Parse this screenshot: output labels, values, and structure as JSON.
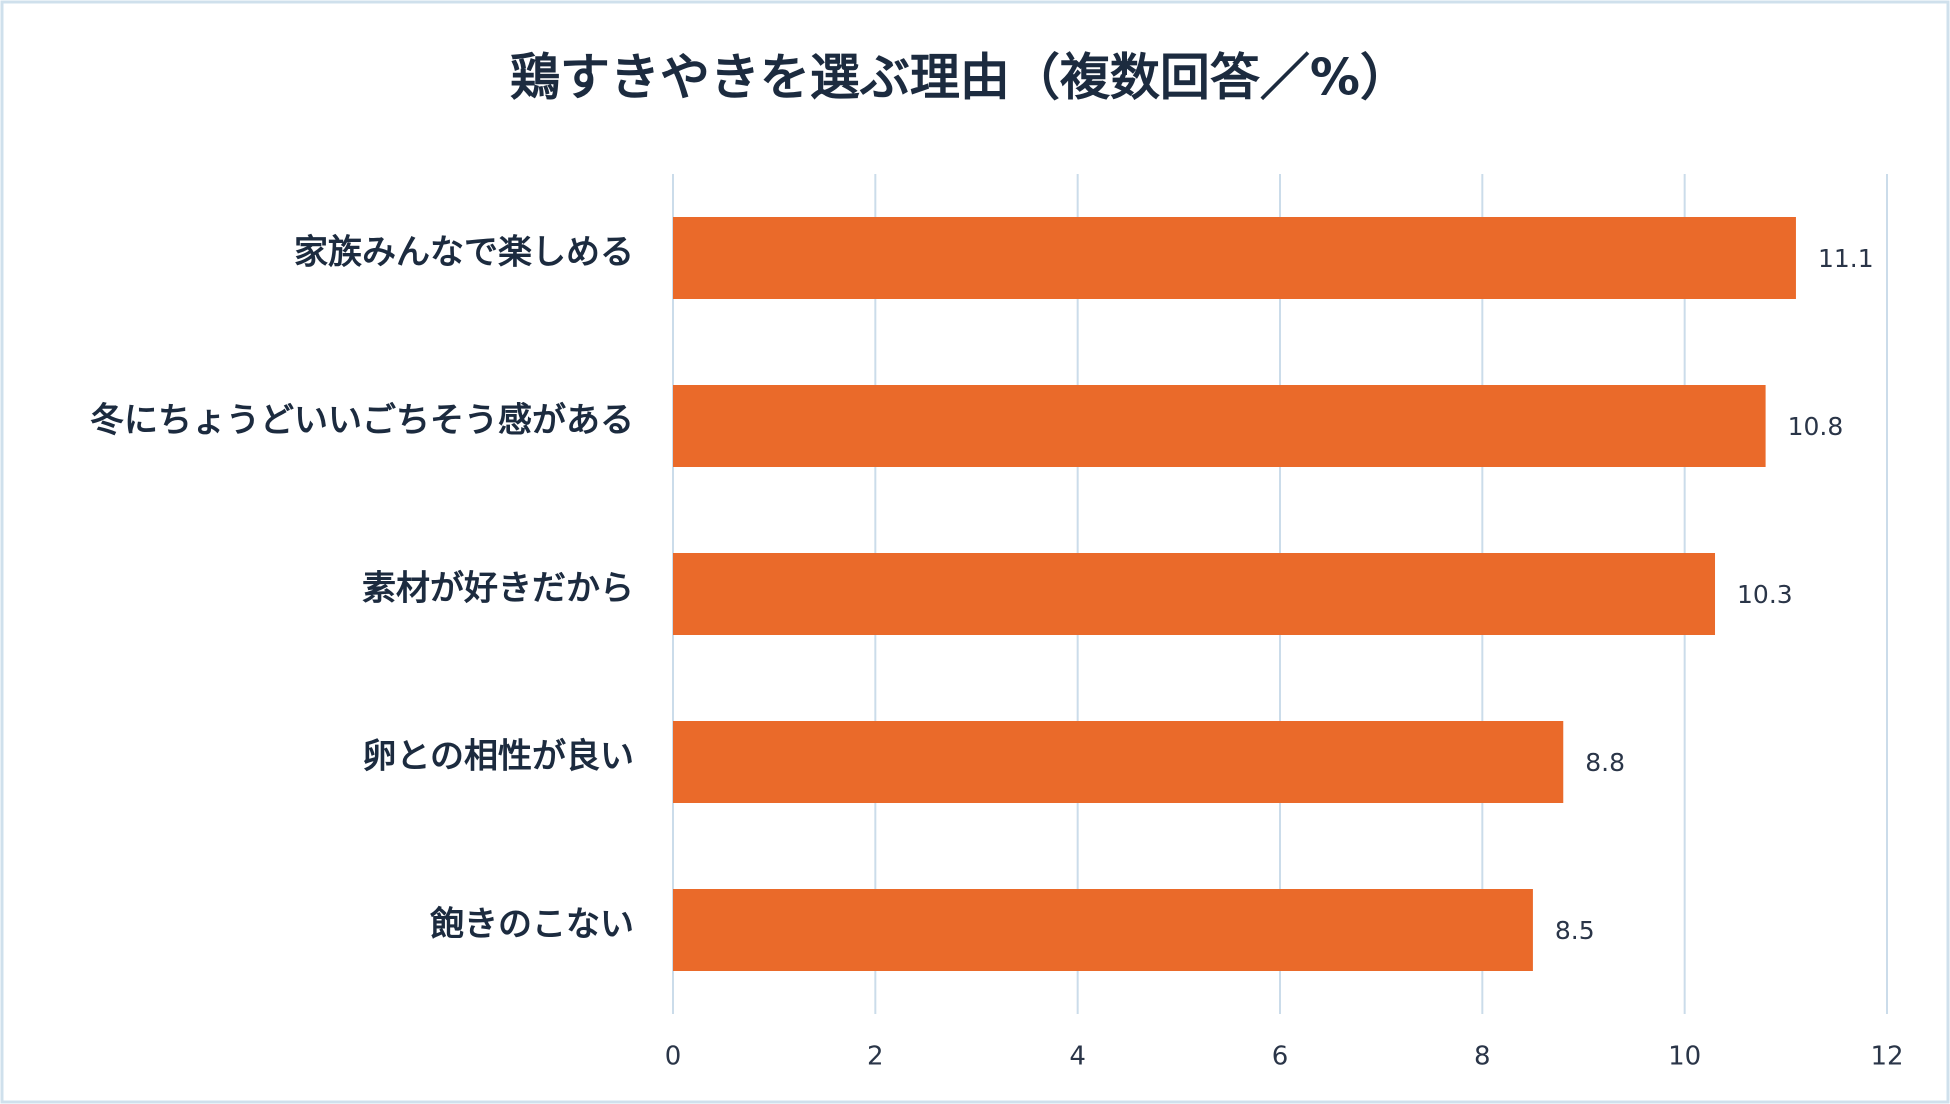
{
  "chart_data": {
    "type": "bar",
    "orientation": "horizontal",
    "title": "鶏すきやきを選ぶ理由（複数回答／%）",
    "categories": [
      "家族みんなで楽しめる",
      "冬にちょうどいいごちそう感がある",
      "素材が好きだから",
      "卵との相性が良い",
      "飽きのこない"
    ],
    "values": [
      11.1,
      10.8,
      10.3,
      8.8,
      8.5
    ],
    "color": "#ea6a2a",
    "xlim": [
      0,
      12
    ],
    "xticks": [
      0,
      2,
      4,
      6,
      8,
      10,
      12
    ],
    "grid": true
  }
}
